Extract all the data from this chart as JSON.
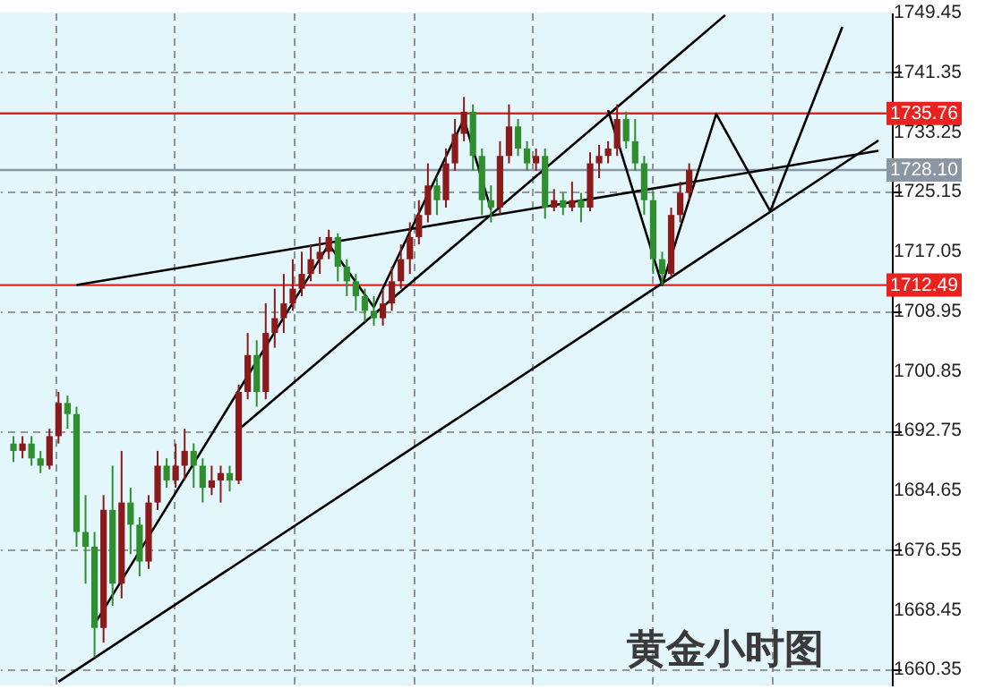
{
  "chart_data": {
    "type": "candlestick",
    "categories": [
      null,
      null,
      null,
      null,
      null,
      null,
      null,
      null,
      null,
      null,
      null,
      null,
      null,
      null,
      null,
      null,
      null,
      null,
      null,
      null,
      null,
      null,
      null,
      null,
      null,
      null,
      null,
      null,
      null,
      null,
      null,
      null,
      null,
      null,
      null,
      null,
      null,
      null,
      null,
      null,
      null,
      null,
      null,
      null,
      null,
      null,
      null,
      null,
      null,
      null,
      null,
      null,
      null,
      null,
      null,
      null,
      null,
      null,
      null,
      null,
      null,
      null,
      null,
      null,
      null,
      null,
      null,
      null,
      null,
      null,
      null,
      null,
      null,
      null,
      null,
      null,
      null,
      null,
      null,
      null,
      null,
      null,
      null,
      null,
      null,
      null,
      null,
      null,
      null,
      null,
      null,
      null,
      null,
      null,
      null,
      null,
      null
    ],
    "ohlc": [
      [
        1691,
        1692,
        1688.5,
        1690
      ],
      [
        1690,
        1692,
        1689,
        1691
      ],
      [
        1691,
        1692,
        1688,
        1689
      ],
      [
        1689,
        1690,
        1687,
        1688
      ],
      [
        1688,
        1693,
        1687.5,
        1692
      ],
      [
        1692,
        1698,
        1691,
        1696.5
      ],
      [
        1696.5,
        1697.5,
        1693,
        1695
      ],
      [
        1695,
        1696,
        1677,
        1679
      ],
      [
        1679,
        1684,
        1672,
        1677
      ],
      [
        1677,
        1679,
        1662,
        1666
      ],
      [
        1666,
        1684,
        1664,
        1682
      ],
      [
        1682,
        1688,
        1669,
        1672
      ],
      [
        1672,
        1690,
        1670,
        1683
      ],
      [
        1683,
        1685,
        1676,
        1680
      ],
      [
        1680,
        1681,
        1673,
        1675
      ],
      [
        1675,
        1684,
        1674,
        1683
      ],
      [
        1683,
        1690,
        1682,
        1688
      ],
      [
        1688,
        1689,
        1685,
        1686
      ],
      [
        1686,
        1691,
        1685,
        1688
      ],
      [
        1688,
        1693,
        1686,
        1690
      ],
      [
        1690,
        1691,
        1685,
        1688
      ],
      [
        1688,
        1689,
        1683,
        1685
      ],
      [
        1685,
        1688,
        1684,
        1686
      ],
      [
        1686,
        1688,
        1683,
        1687
      ],
      [
        1687,
        1688,
        1684.5,
        1686
      ],
      [
        1686,
        1699,
        1685.5,
        1698
      ],
      [
        1698,
        1706,
        1697,
        1703
      ],
      [
        1703,
        1705,
        1696,
        1698
      ],
      [
        1698,
        1710,
        1697,
        1706
      ],
      [
        1706,
        1712,
        1704,
        1708
      ],
      [
        1708,
        1714,
        1706,
        1710
      ],
      [
        1710,
        1716,
        1709,
        1712
      ],
      [
        1712,
        1717,
        1711,
        1714
      ],
      [
        1714,
        1718,
        1713,
        1716
      ],
      [
        1716,
        1719,
        1714,
        1717
      ],
      [
        1717,
        1720,
        1716,
        1719
      ],
      [
        1719,
        1719.5,
        1713,
        1715
      ],
      [
        1715,
        1716,
        1711,
        1713
      ],
      [
        1713,
        1714,
        1709,
        1711
      ],
      [
        1711,
        1712,
        1707.5,
        1709
      ],
      [
        1709,
        1711,
        1707,
        1708
      ],
      [
        1708,
        1712,
        1707,
        1710
      ],
      [
        1710,
        1715,
        1709,
        1713
      ],
      [
        1713,
        1718,
        1712,
        1716
      ],
      [
        1716,
        1721,
        1714,
        1719
      ],
      [
        1719,
        1724,
        1718,
        1722
      ],
      [
        1722,
        1729,
        1721,
        1726
      ],
      [
        1726,
        1727,
        1722,
        1724
      ],
      [
        1724,
        1731,
        1723,
        1729
      ],
      [
        1729,
        1735,
        1728,
        1733
      ],
      [
        1733,
        1738,
        1732,
        1736
      ],
      [
        1736,
        1737,
        1728,
        1730
      ],
      [
        1730,
        1731,
        1722,
        1724
      ],
      [
        1724,
        1726,
        1721,
        1723
      ],
      [
        1723,
        1732,
        1722,
        1730
      ],
      [
        1730,
        1737,
        1729,
        1734
      ],
      [
        1734,
        1735,
        1730,
        1731
      ],
      [
        1731,
        1732,
        1728,
        1729
      ],
      [
        1729,
        1731,
        1728,
        1730
      ],
      [
        1730,
        1731,
        1721.5,
        1723
      ],
      [
        1723,
        1725.5,
        1722.5,
        1724
      ],
      [
        1724,
        1725,
        1722,
        1723
      ],
      [
        1723,
        1726.5,
        1722.5,
        1724
      ],
      [
        1724,
        1725,
        1721,
        1723
      ],
      [
        1723,
        1730.5,
        1722.5,
        1729
      ],
      [
        1729,
        1731.5,
        1727,
        1730
      ],
      [
        1730,
        1732,
        1729,
        1731
      ],
      [
        1731,
        1737,
        1730,
        1735
      ],
      [
        1735,
        1736,
        1731,
        1732
      ],
      [
        1732,
        1735,
        1728,
        1729
      ],
      [
        1729,
        1730,
        1722,
        1724
      ],
      [
        1724,
        1725,
        1714,
        1716
      ],
      [
        1716,
        1717,
        1712.5,
        1714
      ],
      [
        1714,
        1723,
        1713.5,
        1722
      ],
      [
        1722,
        1726.5,
        1721,
        1725
      ],
      [
        1725,
        1729,
        1724,
        1728.1
      ],
      null,
      null,
      null,
      null,
      null,
      null,
      null,
      null,
      null,
      null,
      null,
      null,
      null,
      null,
      null,
      null,
      null,
      null,
      null,
      null,
      null
    ],
    "colors": [
      "#2f8f2f",
      "#8b1a1a",
      "#2f8f2f",
      "#2f8f2f",
      "#8b1a1a",
      "#8b1a1a",
      "#2f8f2f",
      "#2f8f2f",
      "#2f8f2f",
      "#2f8f2f",
      "#8b1a1a",
      "#2f8f2f",
      "#8b1a1a",
      "#2f8f2f",
      "#2f8f2f",
      "#8b1a1a",
      "#8b1a1a",
      "#2f8f2f",
      "#8b1a1a",
      "#8b1a1a",
      "#2f8f2f",
      "#2f8f2f",
      "#8b1a1a",
      "#8b1a1a",
      "#2f8f2f",
      "#8b1a1a",
      "#8b1a1a",
      "#2f8f2f",
      "#8b1a1a",
      "#8b1a1a",
      "#8b1a1a",
      "#8b1a1a",
      "#8b1a1a",
      "#8b1a1a",
      "#8b1a1a",
      "#8b1a1a",
      "#2f8f2f",
      "#2f8f2f",
      "#2f8f2f",
      "#2f8f2f",
      "#2f8f2f",
      "#8b1a1a",
      "#8b1a1a",
      "#8b1a1a",
      "#8b1a1a",
      "#8b1a1a",
      "#8b1a1a",
      "#2f8f2f",
      "#8b1a1a",
      "#8b1a1a",
      "#8b1a1a",
      "#2f8f2f",
      "#2f8f2f",
      "#2f8f2f",
      "#8b1a1a",
      "#8b1a1a",
      "#2f8f2f",
      "#2f8f2f",
      "#8b1a1a",
      "#2f8f2f",
      "#8b1a1a",
      "#2f8f2f",
      "#8b1a1a",
      "#2f8f2f",
      "#8b1a1a",
      "#8b1a1a",
      "#8b1a1a",
      "#8b1a1a",
      "#2f8f2f",
      "#2f8f2f",
      "#2f8f2f",
      "#2f8f2f",
      "#2f8f2f",
      "#8b1a1a",
      "#8b1a1a",
      "#8b1a1a",
      null,
      null,
      null,
      null,
      null,
      null,
      null,
      null,
      null,
      null,
      null,
      null,
      null,
      null,
      null,
      null,
      null,
      null,
      null,
      null,
      null
    ],
    "series": [
      {
        "type": "line",
        "color": "#000000",
        "values": [
          null,
          null,
          null,
          null,
          null,
          null,
          null,
          null,
          null,
          1666.5,
          null,
          null,
          null,
          null,
          null,
          null,
          null,
          null,
          null,
          null,
          null,
          null,
          null,
          null,
          null,
          null,
          null,
          null,
          null,
          null,
          null,
          null,
          null,
          null,
          null,
          1718.0,
          null,
          null,
          null,
          null,
          1709.5,
          null,
          null,
          null,
          null,
          null,
          null,
          null,
          null,
          null,
          1735.0,
          null,
          null,
          1722.7,
          null,
          null,
          null,
          null,
          null,
          null,
          null,
          null,
          null,
          null,
          null,
          null,
          null,
          null,
          null,
          null,
          null,
          null,
          null,
          null,
          null,
          null,
          null,
          null,
          null,
          null,
          null,
          null,
          null,
          null,
          null,
          null,
          null,
          null,
          null,
          null,
          null,
          null,
          null,
          null,
          null,
          null,
          null
        ]
      },
      {
        "type": "line",
        "color": "#000000",
        "values": [
          null,
          null,
          null,
          null,
          null,
          null,
          null,
          null,
          null,
          null,
          null,
          null,
          null,
          null,
          null,
          null,
          null,
          null,
          null,
          null,
          null,
          null,
          null,
          null,
          null,
          null,
          null,
          null,
          null,
          null,
          null,
          null,
          null,
          null,
          null,
          null,
          null,
          null,
          null,
          null,
          null,
          null,
          null,
          null,
          null,
          null,
          null,
          null,
          null,
          null,
          null,
          null,
          null,
          null,
          null,
          null,
          null,
          null,
          null,
          null,
          null,
          null,
          null,
          null,
          null,
          null,
          1736.2,
          null,
          null,
          null,
          null,
          null,
          1712.5,
          null,
          null,
          null,
          null,
          null,
          1735.7,
          null,
          null,
          null,
          null,
          null,
          1722.5,
          null,
          null,
          null,
          null,
          null,
          null,
          null,
          1747.5,
          null,
          null,
          null,
          null
        ]
      },
      {
        "type": "line",
        "color": "#000000",
        "values": [
          null,
          null,
          null,
          null,
          null,
          null,
          null,
          1712.5,
          null,
          null,
          null,
          null,
          null,
          null,
          null,
          null,
          null,
          null,
          null,
          null,
          null,
          null,
          null,
          null,
          null,
          null,
          null,
          null,
          null,
          null,
          null,
          null,
          null,
          null,
          null,
          null,
          null,
          null,
          null,
          null,
          null,
          null,
          null,
          null,
          null,
          null,
          null,
          null,
          null,
          null,
          null,
          null,
          null,
          null,
          null,
          null,
          null,
          null,
          null,
          null,
          null,
          null,
          null,
          null,
          null,
          null,
          null,
          null,
          null,
          null,
          null,
          null,
          null,
          null,
          null,
          null,
          null,
          null,
          null,
          null,
          null,
          null,
          null,
          null,
          null,
          null,
          null,
          null,
          null,
          null,
          null,
          null,
          null,
          null,
          null,
          null,
          1730.7
        ]
      },
      {
        "type": "line",
        "color": "#000000",
        "values": [
          null,
          null,
          null,
          null,
          null,
          1658.7,
          null,
          null,
          null,
          null,
          null,
          null,
          null,
          null,
          null,
          null,
          null,
          null,
          null,
          null,
          null,
          null,
          null,
          null,
          null,
          null,
          null,
          null,
          null,
          null,
          null,
          null,
          null,
          null,
          null,
          null,
          null,
          null,
          null,
          null,
          null,
          null,
          null,
          null,
          null,
          null,
          null,
          null,
          null,
          null,
          null,
          null,
          null,
          null,
          null,
          null,
          null,
          null,
          null,
          null,
          null,
          null,
          null,
          null,
          null,
          null,
          null,
          null,
          null,
          null,
          null,
          null,
          null,
          null,
          null,
          null,
          null,
          null,
          null,
          null,
          null,
          null,
          null,
          null,
          null,
          null,
          null,
          null,
          null,
          null,
          null,
          null,
          null,
          null,
          null,
          null,
          1732.1
        ]
      },
      {
        "type": "line",
        "color": "#000000",
        "values": [
          null,
          null,
          null,
          null,
          null,
          null,
          null,
          null,
          null,
          null,
          null,
          null,
          null,
          null,
          null,
          null,
          null,
          null,
          null,
          null,
          null,
          null,
          null,
          null,
          null,
          1692.9,
          null,
          null,
          null,
          null,
          null,
          null,
          null,
          null,
          null,
          null,
          null,
          null,
          null,
          null,
          null,
          null,
          null,
          null,
          null,
          null,
          null,
          null,
          null,
          null,
          null,
          null,
          null,
          null,
          null,
          null,
          null,
          null,
          null,
          null,
          null,
          null,
          null,
          null,
          null,
          null,
          null,
          null,
          null,
          null,
          null,
          null,
          null,
          null,
          null,
          null,
          null,
          null,
          null,
          1749.1,
          null,
          null,
          null,
          null,
          null,
          null,
          null,
          null,
          null,
          null,
          null,
          null,
          null,
          null,
          null,
          null,
          null
        ]
      }
    ],
    "ylim": [
      1658.2,
      1749.45
    ],
    "yticks": [
      1660.35,
      1668.45,
      1676.55,
      1684.65,
      1692.75,
      1700.85,
      1708.95,
      1717.05,
      1725.15,
      1733.25,
      1741.35,
      1749.45
    ],
    "tick_labels": "y",
    "grid": true,
    "ref_lines": [
      {
        "axis": "y",
        "value": 1735.76,
        "label": "1735.76",
        "color": "#e8221f"
      },
      {
        "axis": "y",
        "value": 1728.1,
        "label": "1728.10",
        "color": "#8a96a3"
      },
      {
        "axis": "y",
        "value": 1712.49,
        "label": "1712.49",
        "color": "#e8221f"
      }
    ],
    "annotations": [
      "黄金小时图"
    ]
  }
}
